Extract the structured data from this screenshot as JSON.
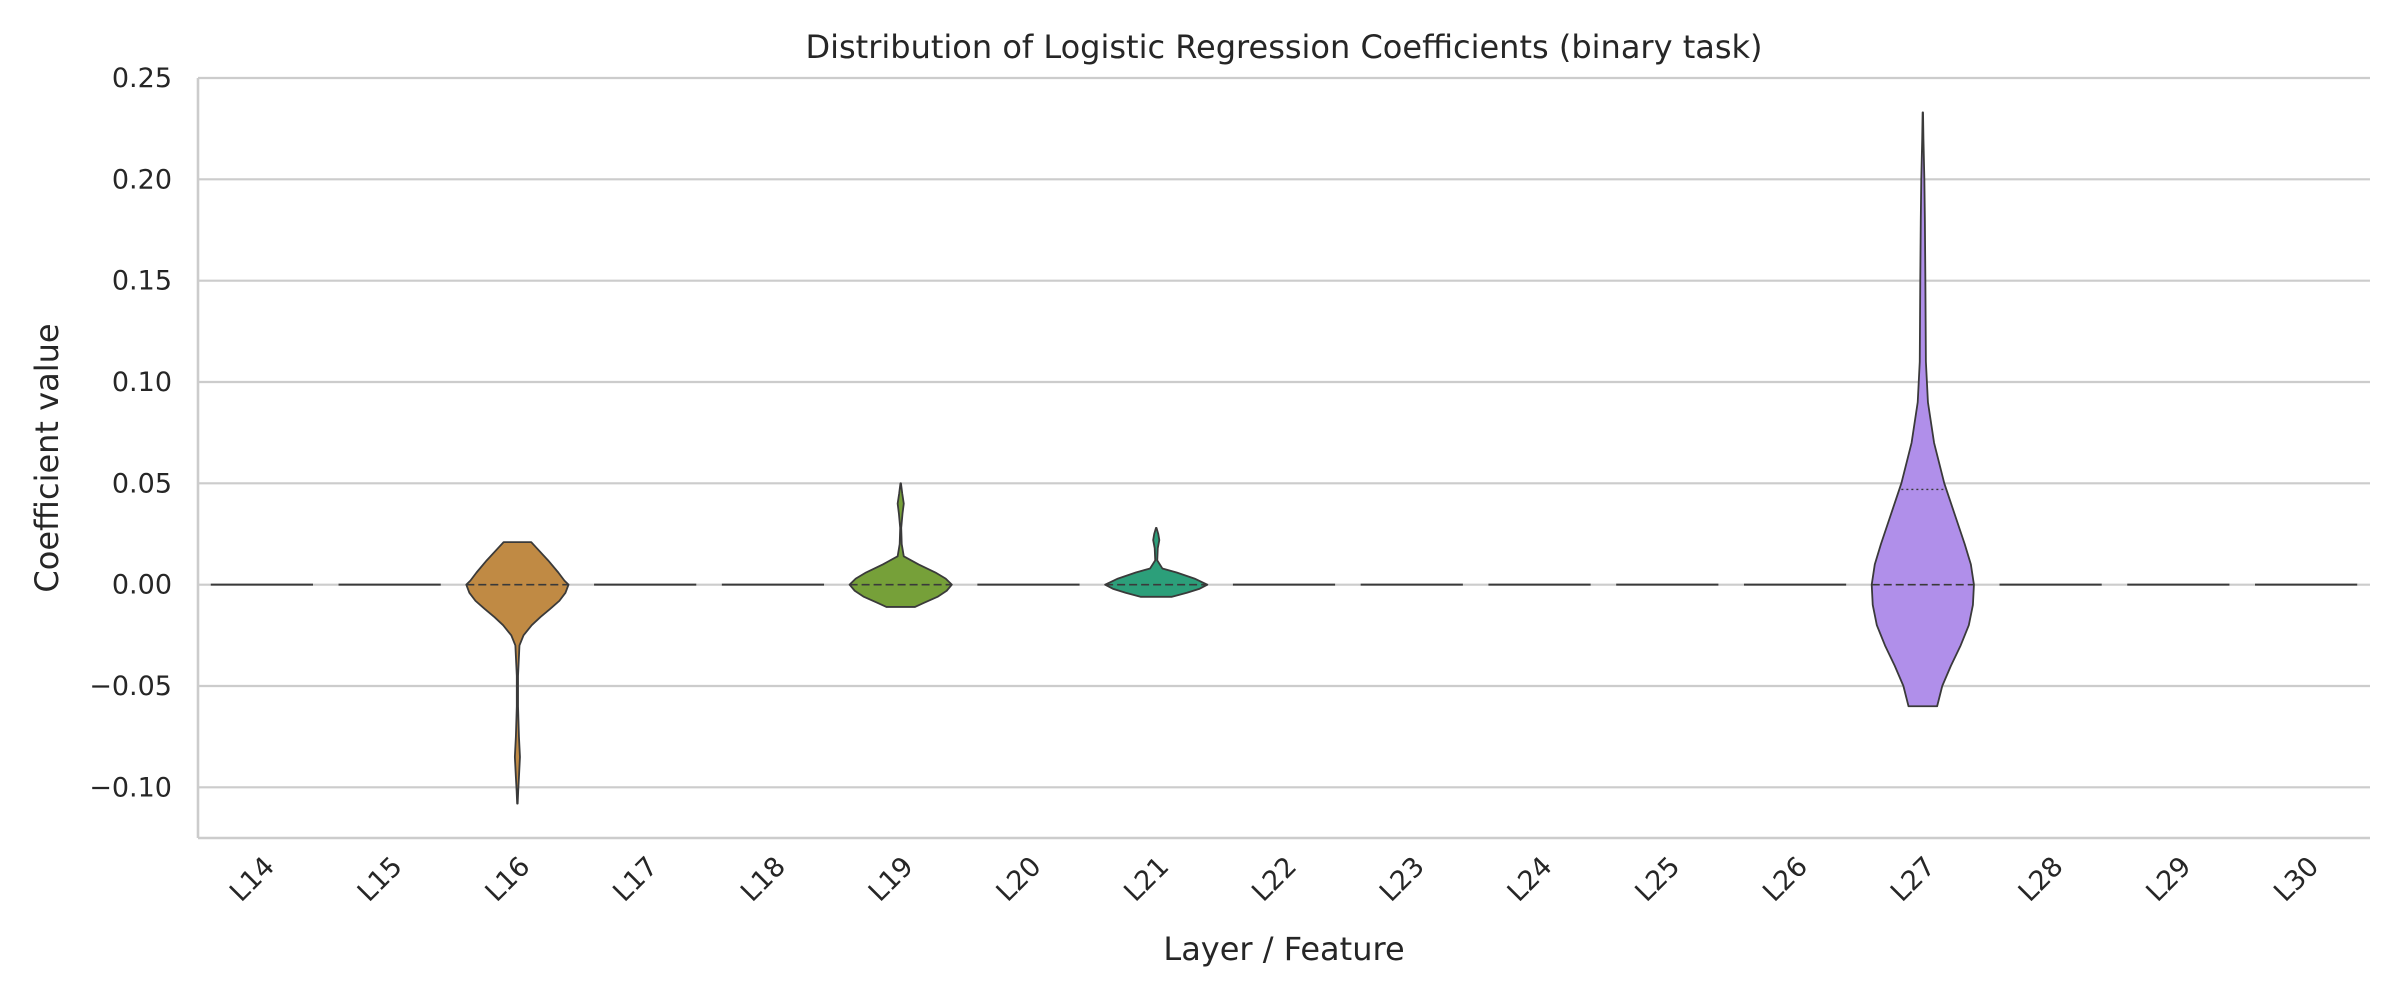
{
  "chart_data": {
    "type": "violin",
    "title": "Distribution of Logistic Regression Coefficients (binary task)",
    "xlabel": "Layer / Feature",
    "ylabel": "Coefficient value",
    "ylim": [
      -0.125,
      0.25
    ],
    "yticks": [
      -0.1,
      -0.05,
      0.0,
      0.05,
      0.1,
      0.15,
      0.2,
      0.25
    ],
    "ytick_labels": [
      "−0.10",
      "−0.05",
      "0.00",
      "0.05",
      "0.10",
      "0.15",
      "0.20",
      "0.25"
    ],
    "grid": "horizontal",
    "categories": [
      "L14",
      "L15",
      "L16",
      "L17",
      "L18",
      "L19",
      "L20",
      "L21",
      "L22",
      "L23",
      "L24",
      "L25",
      "L26",
      "L27",
      "L28",
      "L29",
      "L30"
    ],
    "violins": [
      {
        "category": "L14",
        "color": "#f08a8a",
        "profile": []
      },
      {
        "category": "L15",
        "color": "#ea9a6a",
        "profile": []
      },
      {
        "category": "L16",
        "color": "#c08a44",
        "min": -0.108,
        "max": 0.021,
        "median": 0.0,
        "profile": [
          [
            0.021,
            0.27
          ],
          [
            0.018,
            0.38
          ],
          [
            0.012,
            0.6
          ],
          [
            0.006,
            0.8
          ],
          [
            0.002,
            0.92
          ],
          [
            0.0,
            1.0
          ],
          [
            -0.004,
            0.94
          ],
          [
            -0.008,
            0.82
          ],
          [
            -0.012,
            0.64
          ],
          [
            -0.016,
            0.45
          ],
          [
            -0.02,
            0.28
          ],
          [
            -0.025,
            0.12
          ],
          [
            -0.03,
            0.04
          ],
          [
            -0.045,
            0.012
          ],
          [
            -0.06,
            0.012
          ],
          [
            -0.075,
            0.03
          ],
          [
            -0.085,
            0.05
          ],
          [
            -0.095,
            0.03
          ],
          [
            -0.102,
            0.015
          ],
          [
            -0.108,
            0.005
          ]
        ]
      },
      {
        "category": "L17",
        "color": "#b08a3a",
        "profile": []
      },
      {
        "category": "L18",
        "color": "#a39a3a",
        "profile": []
      },
      {
        "category": "L19",
        "color": "#76a039",
        "min": -0.011,
        "max": 0.05,
        "median": 0.0,
        "profile": [
          [
            0.05,
            0.005
          ],
          [
            0.045,
            0.03
          ],
          [
            0.04,
            0.06
          ],
          [
            0.035,
            0.035
          ],
          [
            0.028,
            0.01
          ],
          [
            0.02,
            0.02
          ],
          [
            0.014,
            0.06
          ],
          [
            0.01,
            0.35
          ],
          [
            0.006,
            0.68
          ],
          [
            0.003,
            0.88
          ],
          [
            0.0,
            1.0
          ],
          [
            -0.003,
            0.9
          ],
          [
            -0.006,
            0.72
          ],
          [
            -0.009,
            0.45
          ],
          [
            -0.011,
            0.28
          ]
        ]
      },
      {
        "category": "L20",
        "color": "#50a652",
        "profile": []
      },
      {
        "category": "L21",
        "color": "#2c9f7a",
        "min": -0.006,
        "max": 0.028,
        "median": 0.0,
        "profile": [
          [
            0.028,
            0.005
          ],
          [
            0.025,
            0.04
          ],
          [
            0.022,
            0.06
          ],
          [
            0.018,
            0.03
          ],
          [
            0.012,
            0.02
          ],
          [
            0.008,
            0.12
          ],
          [
            0.006,
            0.4
          ],
          [
            0.003,
            0.75
          ],
          [
            0.0,
            1.0
          ],
          [
            -0.002,
            0.85
          ],
          [
            -0.004,
            0.6
          ],
          [
            -0.006,
            0.3
          ]
        ]
      },
      {
        "category": "L22",
        "color": "#2aa091",
        "profile": []
      },
      {
        "category": "L23",
        "color": "#2c9fa5",
        "profile": []
      },
      {
        "category": "L24",
        "color": "#34a0b8",
        "profile": []
      },
      {
        "category": "L25",
        "color": "#3c9ac8",
        "profile": []
      },
      {
        "category": "L26",
        "color": "#6a8fd6",
        "profile": []
      },
      {
        "category": "L27",
        "color": "#b08fea",
        "min": -0.06,
        "max": 0.233,
        "median": 0.0,
        "q3": 0.047,
        "profile": [
          [
            0.233,
            0.004
          ],
          [
            0.22,
            0.012
          ],
          [
            0.2,
            0.03
          ],
          [
            0.18,
            0.04
          ],
          [
            0.15,
            0.05
          ],
          [
            0.13,
            0.055
          ],
          [
            0.11,
            0.06
          ],
          [
            0.09,
            0.1
          ],
          [
            0.07,
            0.22
          ],
          [
            0.05,
            0.42
          ],
          [
            0.035,
            0.62
          ],
          [
            0.02,
            0.82
          ],
          [
            0.01,
            0.94
          ],
          [
            0.0,
            1.0
          ],
          [
            -0.01,
            0.98
          ],
          [
            -0.02,
            0.9
          ],
          [
            -0.03,
            0.74
          ],
          [
            -0.04,
            0.55
          ],
          [
            -0.05,
            0.38
          ],
          [
            -0.06,
            0.28
          ]
        ]
      },
      {
        "category": "L28",
        "color": "#d08fe0",
        "profile": []
      },
      {
        "category": "L29",
        "color": "#e88fd0",
        "profile": []
      },
      {
        "category": "L30",
        "color": "#f08ab0",
        "profile": []
      }
    ]
  }
}
